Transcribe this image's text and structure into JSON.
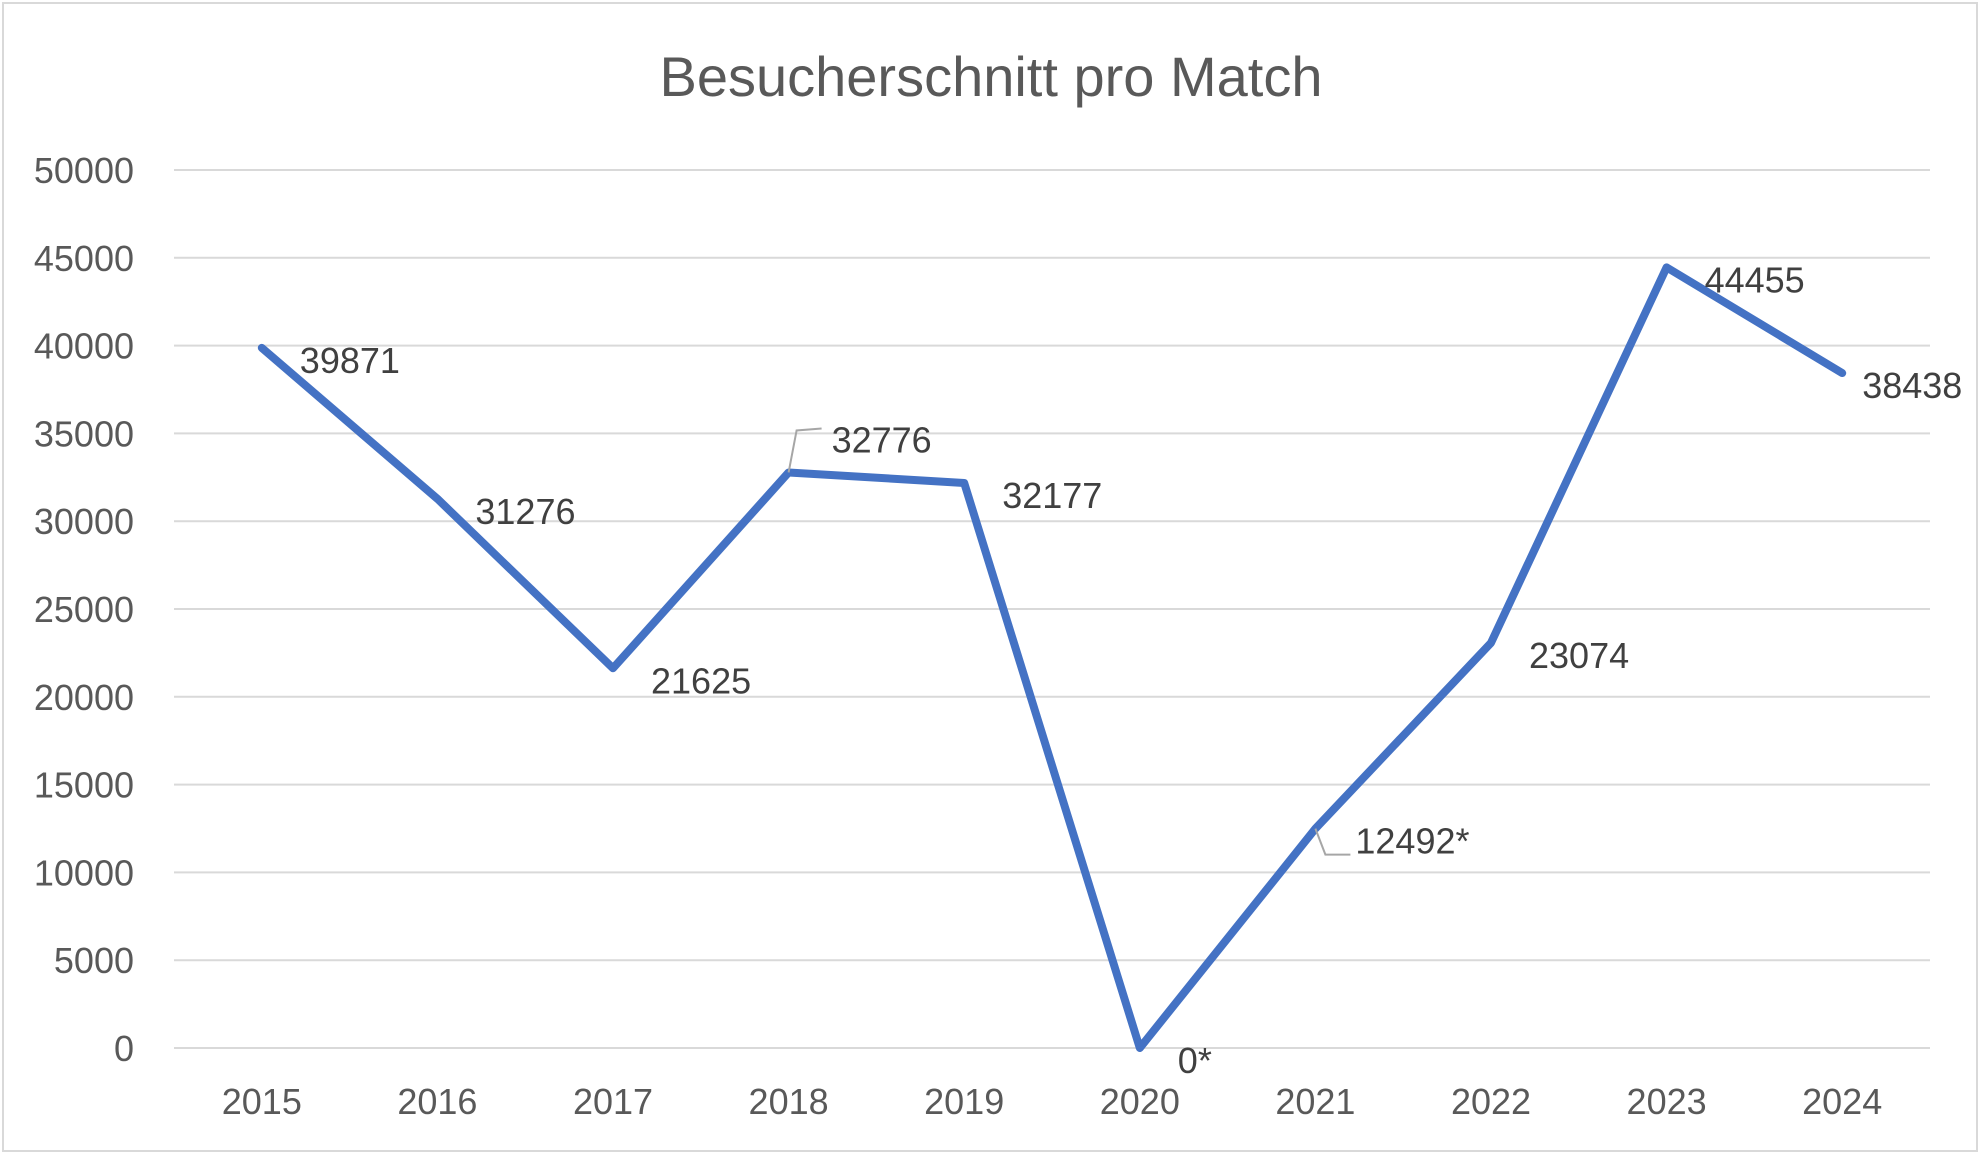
{
  "chart_data": {
    "type": "line",
    "title": "Besucherschnitt pro Match",
    "xlabel": "",
    "ylabel": "",
    "categories": [
      "2015",
      "2016",
      "2017",
      "2018",
      "2019",
      "2020",
      "2021",
      "2022",
      "2023",
      "2024"
    ],
    "series": [
      {
        "values": [
          39871,
          31276,
          21625,
          32776,
          32177,
          0,
          12492,
          23074,
          44455,
          38438
        ],
        "data_labels": [
          "39871",
          "31276",
          "21625",
          "32776",
          "32177",
          "0*",
          "12492*",
          "23074",
          "44455",
          "38438"
        ],
        "color": "#4472c4"
      }
    ],
    "y_ticks": [
      "0",
      "5000",
      "10000",
      "15000",
      "20000",
      "25000",
      "30000",
      "35000",
      "40000",
      "45000",
      "50000"
    ],
    "ylim": [
      0,
      50000
    ],
    "grid": true,
    "legend": "none"
  }
}
